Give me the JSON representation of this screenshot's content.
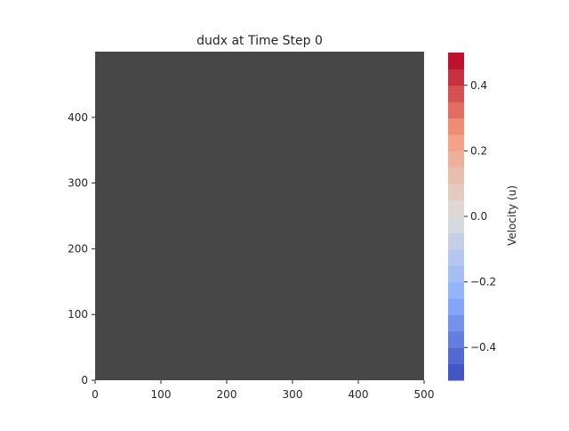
{
  "chart_data": {
    "type": "heatmap",
    "title": "dudx at Time Step 0",
    "xlabel": "",
    "ylabel": "",
    "xlim": [
      0,
      500
    ],
    "ylim": [
      0,
      500
    ],
    "x_ticks": [
      0,
      100,
      200,
      300,
      400,
      500
    ],
    "y_ticks": [
      0,
      100,
      200,
      300,
      400
    ],
    "field_value": 0.0,
    "field_color": "#474747",
    "grid": false,
    "colorbar": {
      "label": "Velocity (u)",
      "range": [
        -0.5,
        0.5
      ],
      "ticks": [
        -0.4,
        -0.2,
        0.0,
        0.2,
        0.4
      ],
      "tick_labels": [
        "−0.4",
        "−0.2",
        "0.0",
        "0.2",
        "0.4"
      ],
      "colormap": "coolwarm",
      "levels": 20
    }
  }
}
